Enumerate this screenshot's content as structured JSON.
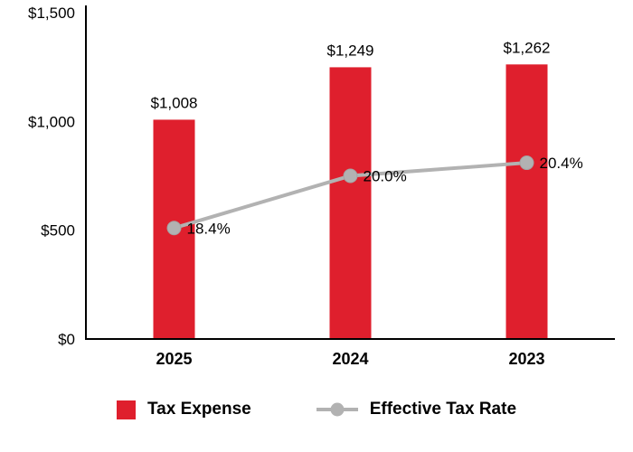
{
  "chart_data": {
    "type": "bar+line",
    "title": "",
    "categories": [
      "2025",
      "2024",
      "2023"
    ],
    "series": [
      {
        "name": "Tax Expense",
        "type": "bar",
        "axis": "primary",
        "values": [
          1008,
          1249,
          1262
        ],
        "labels": [
          "$1,008",
          "$1,249",
          "$1,262"
        ],
        "color": "#df1f2d"
      },
      {
        "name": "Effective Tax Rate",
        "type": "line",
        "axis": "secondary",
        "values": [
          18.4,
          20.0,
          20.4
        ],
        "labels": [
          "18.4%",
          "20.0%",
          "20.4%"
        ],
        "color": "#b2b2b2"
      }
    ],
    "y_axis": {
      "range": [
        0,
        1500
      ],
      "ticks": [
        0,
        500,
        1000,
        1500
      ],
      "tick_labels": [
        "$0",
        "$500",
        "$1,000",
        "$1,500"
      ]
    },
    "y2_axis": {
      "range": [
        15,
        25
      ],
      "visible": false
    },
    "grid": false,
    "legend_position": "bottom",
    "legend": [
      {
        "label": "Tax Expense",
        "swatch": "square",
        "color": "#df1f2d"
      },
      {
        "label": "Effective Tax Rate",
        "swatch": "line-marker",
        "color": "#b2b2b2"
      }
    ],
    "axis_color": "#000000",
    "text_color": "#000000"
  }
}
